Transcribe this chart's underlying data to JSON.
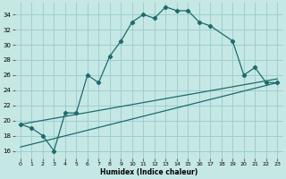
{
  "xlabel": "Humidex (Indice chaleur)",
  "bg_color": "#c5e8e5",
  "grid_color": "#9ecece",
  "line_color": "#1e6b6b",
  "xlim": [
    -0.5,
    23.5
  ],
  "ylim": [
    15.0,
    35.5
  ],
  "yticks": [
    16,
    18,
    20,
    22,
    24,
    26,
    28,
    30,
    32,
    34
  ],
  "xticks": [
    0,
    1,
    2,
    3,
    4,
    5,
    6,
    7,
    8,
    9,
    10,
    11,
    12,
    13,
    14,
    15,
    16,
    17,
    18,
    19,
    20,
    21,
    22,
    23
  ],
  "curve1_x": [
    0,
    1,
    2,
    3,
    4,
    5,
    6,
    7,
    8,
    9,
    10,
    11,
    12,
    13,
    14,
    15,
    16,
    17,
    19,
    20,
    21,
    22,
    23
  ],
  "curve1_y": [
    19.5,
    19.0,
    18.0,
    16.0,
    21.0,
    21.0,
    26.0,
    25.0,
    28.5,
    30.5,
    33.0,
    34.0,
    33.5,
    35.0,
    34.5,
    34.5,
    33.0,
    32.5,
    30.5,
    26.0,
    27.0,
    25.0,
    25.0
  ],
  "curve2_x": [
    0,
    23
  ],
  "curve2_y": [
    16.5,
    25.0
  ],
  "curve3_x": [
    0,
    23
  ],
  "curve3_y": [
    19.5,
    25.5
  ]
}
